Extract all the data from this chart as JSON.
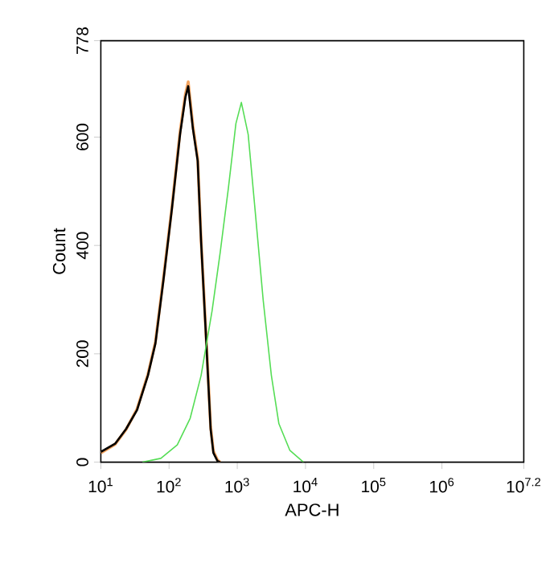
{
  "chart_data": {
    "type": "line",
    "xlabel": "APC-H",
    "ylabel": "Count",
    "log": "x",
    "xlim": [
      10,
      15848932
    ],
    "ylim": [
      0,
      778
    ],
    "xticks": [
      {
        "value": 10,
        "label": "10$^{1}$"
      },
      {
        "value": 100,
        "label": "10$^{2}$"
      },
      {
        "value": 1000,
        "label": "10$^{3}$"
      },
      {
        "value": 10000,
        "label": "10$^{4}$"
      },
      {
        "value": 100000,
        "label": "10$^{5}$"
      },
      {
        "value": 1000000,
        "label": "10$^{6}$"
      },
      {
        "value": 15848932,
        "label": "10$^{7.2}$"
      }
    ],
    "yticks": [
      0,
      200,
      400,
      600,
      778
    ],
    "series": [
      {
        "color": "#f4a460",
        "x": [
          10,
          16.2,
          23.4,
          33.9,
          49,
          63.1,
          83.2,
          110,
          145,
          174,
          191,
          224,
          263,
          295,
          355,
          407,
          447,
          513,
          562
        ],
        "values": [
          17,
          33,
          60,
          98,
          162,
          222,
          342,
          470,
          610,
          680,
          702,
          620,
          560,
          410,
          215,
          65,
          20,
          4,
          0
        ]
      },
      {
        "color": "#000000",
        "x": [
          10,
          16.2,
          23.4,
          33.9,
          49,
          63.1,
          83.2,
          110,
          145,
          174,
          191,
          224,
          263,
          295,
          355,
          407,
          447,
          513,
          562
        ],
        "values": [
          19,
          34,
          61,
          96,
          160,
          219,
          338,
          467,
          605,
          674,
          694,
          615,
          556,
          407,
          210,
          61,
          17,
          2,
          0
        ]
      },
      {
        "color": "#55dd55",
        "x": [
          40.7,
          75.9,
          132,
          204,
          295,
          427,
          562,
          741,
          955,
          1148,
          1445,
          1820,
          2399,
          3162,
          4074,
          5888,
          9333
        ],
        "values": [
          0,
          7,
          32,
          81,
          160,
          279,
          387,
          506,
          625,
          664,
          605,
          467,
          299,
          160,
          71,
          22,
          0
        ]
      }
    ]
  }
}
